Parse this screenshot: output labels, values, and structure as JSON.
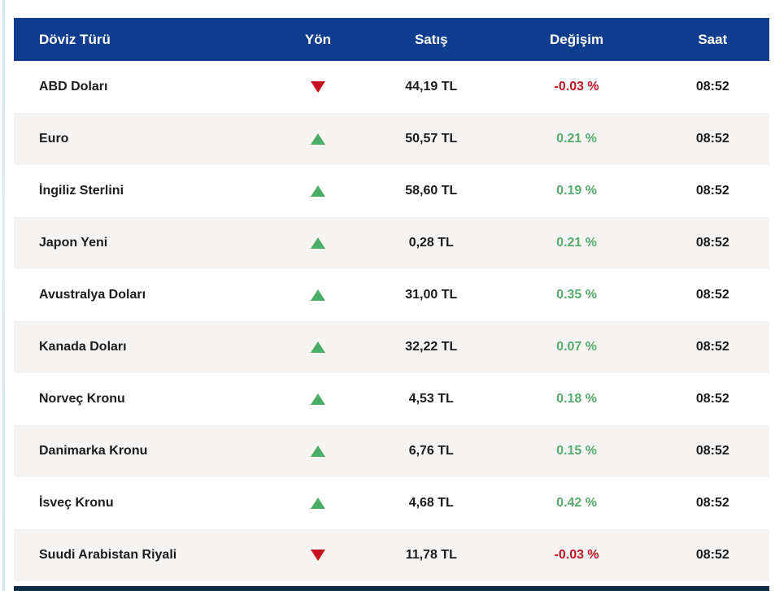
{
  "table": {
    "columns": {
      "name": {
        "label": "Döviz Türü"
      },
      "direction": {
        "label": "Yön"
      },
      "price": {
        "label": "Satış"
      },
      "change": {
        "label": "Değişim"
      },
      "time": {
        "label": "Saat"
      }
    },
    "rows": [
      {
        "name": "ABD Doları",
        "direction": "down",
        "price": "44,19 TL",
        "change": "-0.03 %",
        "time": "08:52"
      },
      {
        "name": "Euro",
        "direction": "up",
        "price": "50,57 TL",
        "change": "0.21 %",
        "time": "08:52"
      },
      {
        "name": "İngiliz Sterlini",
        "direction": "up",
        "price": "58,60 TL",
        "change": "0.19 %",
        "time": "08:52"
      },
      {
        "name": "Japon Yeni",
        "direction": "up",
        "price": "0,28 TL",
        "change": "0.21 %",
        "time": "08:52"
      },
      {
        "name": "Avustralya Doları",
        "direction": "up",
        "price": "31,00 TL",
        "change": "0.35 %",
        "time": "08:52"
      },
      {
        "name": "Kanada Doları",
        "direction": "up",
        "price": "32,22 TL",
        "change": "0.07 %",
        "time": "08:52"
      },
      {
        "name": "Norveç Kronu",
        "direction": "up",
        "price": "4,53 TL",
        "change": "0.18 %",
        "time": "08:52"
      },
      {
        "name": "Danimarka Kronu",
        "direction": "up",
        "price": "6,76 TL",
        "change": "0.15 %",
        "time": "08:52"
      },
      {
        "name": "İsveç Kronu",
        "direction": "up",
        "price": "4,68 TL",
        "change": "0.42 %",
        "time": "08:52"
      },
      {
        "name": "Suudi Arabistan Riyali",
        "direction": "down",
        "price": "11,78 TL",
        "change": "-0.03 %",
        "time": "08:52"
      }
    ]
  },
  "colors": {
    "header_background": "#0e3d8e",
    "row_alt_background": "#f5f4f2",
    "up_green": "#4cae66",
    "down_red": "#c81120",
    "change_up_text": "#57ab6d",
    "change_down_text": "#c11224",
    "bottom_bar": "#0d2b45"
  }
}
